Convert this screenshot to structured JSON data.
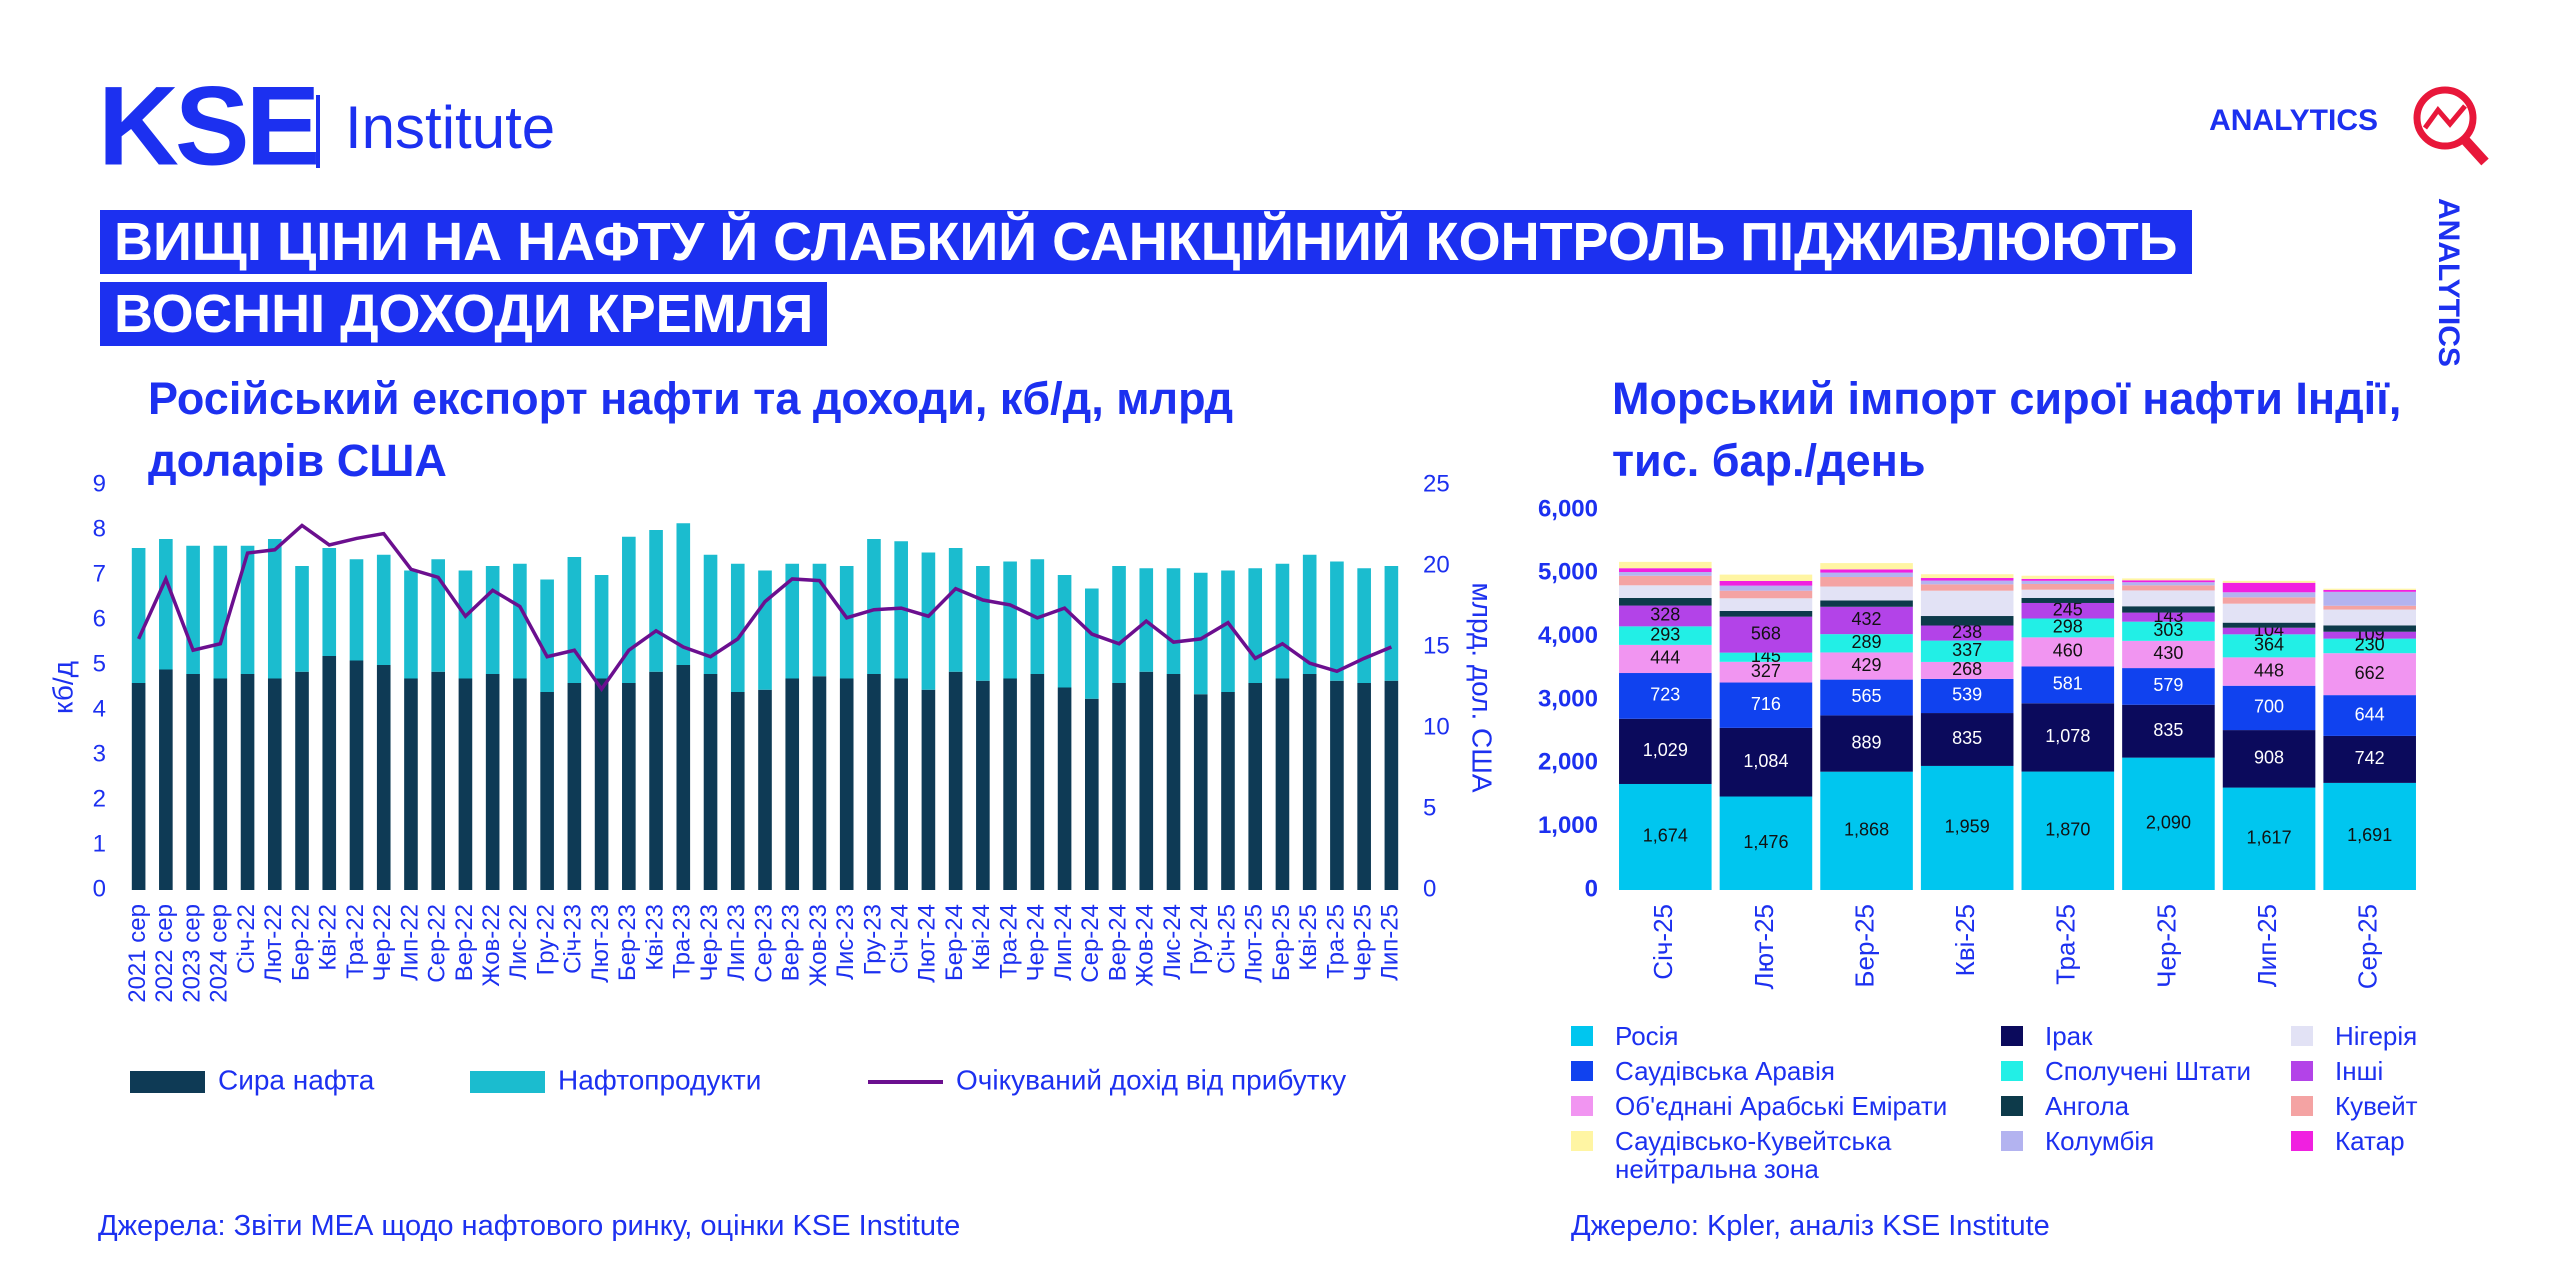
{
  "header": {
    "logo": "KSE",
    "institute": "Institute",
    "brand": "ANALYTICS",
    "headline": [
      "ВИЩІ ЦІНИ НА НАФТУ Й СЛАБКИЙ САНКЦІЙНИЙ КОНТРОЛЬ ПІДЖИВЛЮЮТЬ",
      "ВОЄННІ ДОХОДИ КРЕМЛЯ"
    ]
  },
  "chart_data": [
    {
      "type": "bar",
      "stacked": true,
      "title": "Російський експорт нафти та доходи, кб/д, млрд доларів США",
      "ylabel": "кб/д",
      "y2label": "млрд. дол. США",
      "source": "Джерела: Звіти МЕА щодо нафтового ринку, оцінки KSE Institute",
      "categories": [
        "2021 сер",
        "2022 сер",
        "2023 сер",
        "2024 сер",
        "Січ-22",
        "Лют-22",
        "Бер-22",
        "Кві-22",
        "Тра-22",
        "Чер-22",
        "Лип-22",
        "Сер-22",
        "Вер-22",
        "Жов-22",
        "Лис-22",
        "Гру-22",
        "Січ-23",
        "Лют-23",
        "Бер-23",
        "Кві-23",
        "Тра-23",
        "Чер-23",
        "Лип-23",
        "Сер-23",
        "Вер-23",
        "Жов-23",
        "Лис-23",
        "Гру-23",
        "Січ-24",
        "Лют-24",
        "Бер-24",
        "Кві-24",
        "Тра-24",
        "Чер-24",
        "Лип-24",
        "Сер-24",
        "Вер-24",
        "Жов-24",
        "Лис-24",
        "Гру-24",
        "Січ-25",
        "Лют-25",
        "Бер-25",
        "Кві-25",
        "Тра-25",
        "Чер-25",
        "Лип-25"
      ],
      "series": [
        {
          "name": "Сира нафта",
          "color": "#0e3a55",
          "values": [
            4.6,
            4.9,
            4.8,
            4.7,
            4.8,
            4.7,
            4.85,
            5.2,
            5.1,
            5.0,
            4.7,
            4.85,
            4.7,
            4.8,
            4.7,
            4.4,
            4.6,
            4.7,
            4.6,
            4.85,
            5.0,
            4.8,
            4.4,
            4.45,
            4.7,
            4.75,
            4.7,
            4.8,
            4.7,
            4.45,
            4.85,
            4.65,
            4.7,
            4.8,
            4.5,
            4.25,
            4.6,
            4.85,
            4.8,
            4.35,
            4.4,
            4.6,
            4.7,
            4.8,
            4.65,
            4.6,
            4.65
          ]
        },
        {
          "name": "Нафтопродукти",
          "color": "#1bbccf",
          "values": [
            3.0,
            2.9,
            2.85,
            2.95,
            2.85,
            3.1,
            2.35,
            2.4,
            2.25,
            2.45,
            2.4,
            2.5,
            2.4,
            2.4,
            2.55,
            2.5,
            2.8,
            2.3,
            3.25,
            3.15,
            3.15,
            2.65,
            2.85,
            2.65,
            2.55,
            2.5,
            2.5,
            3.0,
            3.05,
            3.05,
            2.75,
            2.55,
            2.6,
            2.55,
            2.5,
            2.45,
            2.6,
            2.3,
            2.35,
            2.7,
            2.7,
            2.55,
            2.55,
            2.65,
            2.65,
            2.55,
            2.55
          ]
        },
        {
          "name": "Очікуваний дохід від прибутку",
          "color": "#6b0f8f",
          "type": "line",
          "axis": "y2",
          "values": [
            15.5,
            19.2,
            14.8,
            15.2,
            20.8,
            21.0,
            22.5,
            21.3,
            21.7,
            22.0,
            19.8,
            19.3,
            16.9,
            18.5,
            17.5,
            14.4,
            14.8,
            12.4,
            14.8,
            16.0,
            15.0,
            14.4,
            15.5,
            17.8,
            19.2,
            19.1,
            16.8,
            17.3,
            17.4,
            16.9,
            18.6,
            17.9,
            17.6,
            16.8,
            17.4,
            15.8,
            15.2,
            16.6,
            15.3,
            15.5,
            16.5,
            14.3,
            15.2,
            14.0,
            13.5,
            14.3,
            15.0
          ]
        }
      ],
      "ylim": [
        0,
        9
      ],
      "yticks": [
        0,
        1,
        2,
        3,
        4,
        5,
        6,
        7,
        8,
        9
      ],
      "y2lim": [
        0,
        25
      ],
      "y2ticks": [
        0,
        5,
        10,
        15,
        20,
        25
      ]
    },
    {
      "type": "bar",
      "stacked": true,
      "title": "Морський імпорт сирої нафти Індії, тис. бар./день",
      "source": "Джерело: Kpler, аналіз KSE Institute",
      "categories": [
        "Січ-25",
        "Лют-25",
        "Бер-25",
        "Кві-25",
        "Тра-25",
        "Чер-25",
        "Лип-25",
        "Сер-25"
      ],
      "series": [
        {
          "name": "Росія",
          "color": "#00c6ef",
          "values": [
            1674,
            1476,
            1868,
            1959,
            1870,
            2090,
            1617,
            1691
          ],
          "value_labels": [
            "1,674",
            "1,476",
            "1,868",
            "1,959",
            "1,870",
            "2,090",
            "1,617",
            "1,691"
          ]
        },
        {
          "name": "Ірак",
          "color": "#0b0a5c",
          "values": [
            1029,
            1084,
            889,
            835,
            1078,
            835,
            908,
            742
          ],
          "value_labels": [
            "1,029",
            "1,084",
            "889",
            "835",
            "1,078",
            "835",
            "908",
            "742"
          ]
        },
        {
          "name": "Саудівська Аравія",
          "color": "#1042ef",
          "values": [
            723,
            716,
            565,
            539,
            581,
            579,
            700,
            644
          ],
          "value_labels": [
            "723",
            "716",
            "565",
            "539",
            "581",
            "579",
            "700",
            "644"
          ]
        },
        {
          "name": "Об'єднані Арабські Емірати",
          "color": "#f195f1",
          "values": [
            444,
            327,
            429,
            268,
            460,
            430,
            448,
            662
          ],
          "value_labels": [
            "444",
            "327",
            "429",
            "268",
            "460",
            "430",
            "448",
            "662"
          ]
        },
        {
          "name": "Сполучені Штати",
          "color": "#22efe6",
          "values": [
            293,
            145,
            289,
            337,
            298,
            303,
            364,
            230
          ],
          "value_labels": [
            "293",
            "145",
            "289",
            "337",
            "298",
            "303",
            "364",
            "230"
          ]
        },
        {
          "name": "Інші",
          "color": "#b343e8",
          "values": [
            328,
            568,
            432,
            238,
            245,
            143,
            104,
            109
          ],
          "value_labels": [
            "328",
            "568",
            "432",
            "238",
            "245",
            "143",
            "104",
            "109"
          ]
        },
        {
          "name": "Ангола",
          "color": "#0d3a4a",
          "values": [
            120,
            90,
            100,
            150,
            80,
            100,
            80,
            100
          ]
        },
        {
          "name": "Нігерія",
          "color": "#e2e2f5",
          "values": [
            200,
            200,
            220,
            400,
            130,
            250,
            300,
            250
          ]
        },
        {
          "name": "Кувейт",
          "color": "#f4a3a3",
          "values": [
            150,
            120,
            150,
            100,
            90,
            80,
            100,
            60
          ]
        },
        {
          "name": "Колумбія",
          "color": "#b3b3f0",
          "values": [
            60,
            80,
            70,
            60,
            50,
            50,
            80,
            220
          ]
        },
        {
          "name": "Катар",
          "color": "#f020e0",
          "values": [
            60,
            74,
            50,
            40,
            30,
            30,
            150,
            30
          ]
        },
        {
          "name": "Саудівсько-Кувейтська нейтральна зона",
          "color": "#fff5a3",
          "values": [
            100,
            100,
            100,
            60,
            50,
            30,
            30,
            20
          ]
        }
      ],
      "ylim": [
        0,
        6000
      ],
      "yticks": [
        0,
        {
          "value": 1000,
          "label": "1,000"
        },
        {
          "value": 2000,
          "label": "2,000"
        },
        {
          "value": 3000,
          "label": "3,000"
        },
        {
          "value": 4000,
          "label": "4,000"
        },
        {
          "value": 5000,
          "label": "5,000"
        },
        {
          "value": 6000,
          "label": "6,000"
        }
      ]
    }
  ]
}
